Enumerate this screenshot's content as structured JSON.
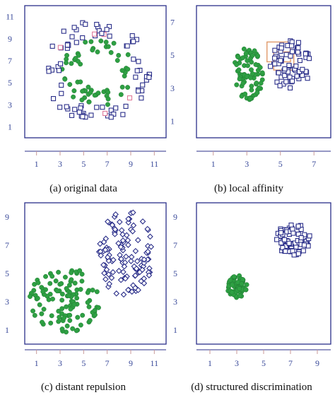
{
  "figure_colors": {
    "axis": "#2b2f8a",
    "tick_text": "#3a4a9a",
    "tick_mark": "#c89a9a",
    "circle_fill": "#2ea043",
    "square_stroke": "#2b2f8a",
    "pink_square_stroke": "#e07a9a",
    "affinity_box": "#e09a6a"
  },
  "chart_data": [
    {
      "type": "scatter",
      "panel": "a",
      "caption": "(a)  original data",
      "xticks": [
        1,
        3,
        5,
        7,
        9,
        11
      ],
      "yticks": [
        1,
        3,
        5,
        7,
        9,
        11
      ],
      "xlim": [
        0,
        12
      ],
      "ylim": [
        0,
        12
      ],
      "series": [
        {
          "marker": "circle",
          "color": "#2ea043",
          "region": "ring",
          "center": [
            6.2,
            6.0
          ],
          "radius": [
            1.6,
            3.1
          ],
          "count": 60
        },
        {
          "marker": "square",
          "color": "#2b2f8a",
          "region": "ring",
          "center": [
            6.2,
            6.0
          ],
          "radius": [
            3.2,
            4.7
          ],
          "count": 80
        }
      ]
    },
    {
      "type": "scatter",
      "panel": "b",
      "caption": "(b)  local affinity",
      "xticks": [
        1,
        3,
        5,
        7
      ],
      "yticks": [
        1,
        3,
        5,
        7
      ],
      "xlim": [
        0,
        8
      ],
      "ylim": [
        0,
        8
      ],
      "series": [
        {
          "marker": "circle",
          "color": "#2ea043",
          "region": "blob",
          "center": [
            3.1,
            3.9
          ],
          "radius": [
            0.9,
            1.6
          ],
          "count": 75
        },
        {
          "marker": "square",
          "color": "#2b2f8a",
          "region": "blob",
          "center": [
            5.6,
            4.4
          ],
          "radius": [
            1.2,
            1.5
          ],
          "count": 70
        }
      ]
    },
    {
      "type": "scatter",
      "panel": "c",
      "caption": "(c)  distant repulsion",
      "xticks": [
        1,
        3,
        5,
        7,
        9,
        11
      ],
      "yticks": [
        1,
        3,
        5,
        7,
        9
      ],
      "xlim": [
        0,
        12
      ],
      "ylim": [
        0,
        10
      ],
      "series": [
        {
          "marker": "circle",
          "color": "#2ea043",
          "region": "blob",
          "center": [
            3.4,
            3.1
          ],
          "radius": [
            3.0,
            2.4
          ],
          "count": 110
        },
        {
          "marker": "diamond",
          "color": "#2b2f8a",
          "region": "blob",
          "center": [
            8.6,
            6.4
          ],
          "radius": [
            2.3,
            3.1
          ],
          "count": 120
        }
      ]
    },
    {
      "type": "scatter",
      "panel": "d",
      "caption": "(d)  structured discrimination",
      "xticks": [
        1,
        3,
        5,
        7,
        9
      ],
      "yticks": [
        1,
        3,
        5,
        7,
        9
      ],
      "xlim": [
        0,
        10
      ],
      "ylim": [
        0,
        10
      ],
      "series": [
        {
          "marker": "circle",
          "color": "#2ea043",
          "region": "blob",
          "center": [
            3.0,
            4.1
          ],
          "radius": [
            0.75,
            0.8
          ],
          "count": 70
        },
        {
          "marker": "square",
          "color": "#2b2f8a",
          "region": "blob",
          "center": [
            7.2,
            7.4
          ],
          "radius": [
            1.3,
            1.1
          ],
          "count": 70
        }
      ]
    }
  ]
}
